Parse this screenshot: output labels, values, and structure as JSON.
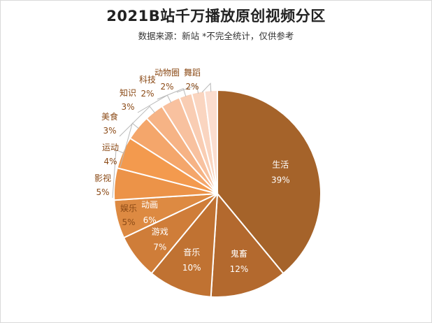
{
  "chart_data": {
    "type": "pie",
    "title": "2021B站千万播放原创视频分区",
    "subtitle": "数据来源：新站 *不完全统计，仅供参考",
    "slices": [
      {
        "name": "生活",
        "value": 39,
        "label": "39%",
        "color": "#A5632A"
      },
      {
        "name": "鬼畜",
        "value": 12,
        "label": "12%",
        "color": "#B3692E"
      },
      {
        "name": "音乐",
        "value": 10,
        "label": "10%",
        "color": "#C07232"
      },
      {
        "name": "游戏",
        "value": 7,
        "label": "7%",
        "color": "#CF7D39"
      },
      {
        "name": "动画",
        "value": 6,
        "label": "6%",
        "color": "#DD8A42"
      },
      {
        "name": "娱乐",
        "value": 5,
        "label": "5%",
        "color": "#EC9348"
      },
      {
        "name": "影视",
        "value": 5,
        "label": "5%",
        "color": "#F39A4E"
      },
      {
        "name": "运动",
        "value": 4,
        "label": "4%",
        "color": "#F4A66B"
      },
      {
        "name": "美食",
        "value": 3,
        "label": "3%",
        "color": "#F6B385"
      },
      {
        "name": "知识",
        "value": 3,
        "label": "3%",
        "color": "#F8C19F"
      },
      {
        "name": "科技",
        "value": 2,
        "label": "2%",
        "color": "#F9CDB3"
      },
      {
        "name": "动物圈",
        "value": 2,
        "label": "2%",
        "color": "#FAD5C0"
      },
      {
        "name": "舞蹈",
        "value": 2,
        "label": "2%",
        "color": "#FBDDCF"
      }
    ],
    "label_color_outside": "#8B4A16",
    "label_color_inside": "#ffffff",
    "legend": "none"
  }
}
